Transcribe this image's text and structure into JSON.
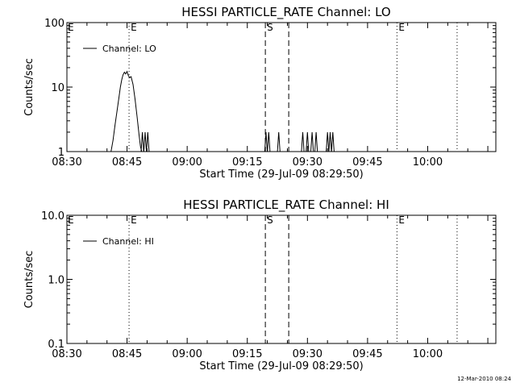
{
  "colors": {
    "foreground": "#000000",
    "background": "#ffffff"
  },
  "footer": {
    "stamp": "12-Mar-2010 08:24"
  },
  "chart_data": [
    {
      "type": "line",
      "title": "HESSI PARTICLE_RATE Channel: LO",
      "xlabel": "Start Time (29-Jul-09 08:29:50)",
      "ylabel": "Counts/sec",
      "yscale": "log",
      "ylim": [
        1,
        100
      ],
      "yticks": [
        1,
        10,
        100
      ],
      "ytick_labels": [
        "1",
        "10",
        "100"
      ],
      "xlim": [
        "08:30",
        "10:17"
      ],
      "xticks": [
        "08:30",
        "08:45",
        "09:00",
        "09:15",
        "09:30",
        "09:45",
        "10:00"
      ],
      "legend": {
        "label": "Channel: LO",
        "position": "top-left"
      },
      "markers": [
        {
          "time": "08:45:30",
          "style": "dotted",
          "label": "E"
        },
        {
          "time": "09:19:30",
          "style": "dashed",
          "label": "S"
        },
        {
          "time": "09:25:20",
          "style": "dashed",
          "label": ""
        },
        {
          "time": "09:52:20",
          "style": "dotted",
          "label": "E"
        },
        {
          "time": "10:07:20",
          "style": "dotted",
          "label": ""
        }
      ],
      "series": [
        {
          "name": "Channel: LO",
          "x": [
            "08:41:00",
            "08:41:30",
            "08:42:00",
            "08:42:30",
            "08:43:00",
            "08:43:20",
            "08:43:40",
            "08:44:00",
            "08:44:20",
            "08:44:40",
            "08:45:00",
            "08:45:20",
            "08:45:40",
            "08:46:00",
            "08:46:30",
            "08:47:00",
            "08:47:30",
            "08:48:00",
            "08:48:20",
            "08:48:40"
          ],
          "y": [
            1.0,
            1.5,
            2.6,
            4.2,
            7.0,
            10.0,
            13.0,
            15.5,
            17.0,
            16.0,
            17.5,
            15.0,
            14.0,
            14.5,
            11.0,
            6.5,
            3.5,
            1.8,
            1.2,
            1.0
          ]
        }
      ],
      "spikes": [
        "08:48:50",
        "08:49:30",
        "08:50:10",
        "09:19:40",
        "09:20:20",
        "09:22:50",
        "09:28:50",
        "09:30:00",
        "09:31:10",
        "09:32:10",
        "09:35:00",
        "09:35:40",
        "09:36:20"
      ],
      "spike_value": 2
    },
    {
      "type": "line",
      "title": "HESSI PARTICLE_RATE Channel: HI",
      "xlabel": "Start Time (29-Jul-09 08:29:50)",
      "ylabel": "Counts/sec",
      "yscale": "log",
      "ylim": [
        0.1,
        10
      ],
      "yticks": [
        0.1,
        1,
        10
      ],
      "ytick_labels": [
        "0.1",
        "1.0",
        "10.0"
      ],
      "xlim": [
        "08:30",
        "10:17"
      ],
      "xticks": [
        "08:30",
        "08:45",
        "09:00",
        "09:15",
        "09:30",
        "09:45",
        "10:00"
      ],
      "legend": {
        "label": "Channel: HI",
        "position": "top-left"
      },
      "markers": [
        {
          "time": "08:45:30",
          "style": "dotted",
          "label": "E"
        },
        {
          "time": "09:19:30",
          "style": "dashed",
          "label": "S"
        },
        {
          "time": "09:25:20",
          "style": "dashed",
          "label": ""
        },
        {
          "time": "09:52:20",
          "style": "dotted",
          "label": "E"
        },
        {
          "time": "10:07:20",
          "style": "dotted",
          "label": ""
        }
      ],
      "series": [
        {
          "name": "Channel: HI",
          "x": [],
          "y": []
        }
      ],
      "spikes": [],
      "spike_value": 2
    }
  ]
}
